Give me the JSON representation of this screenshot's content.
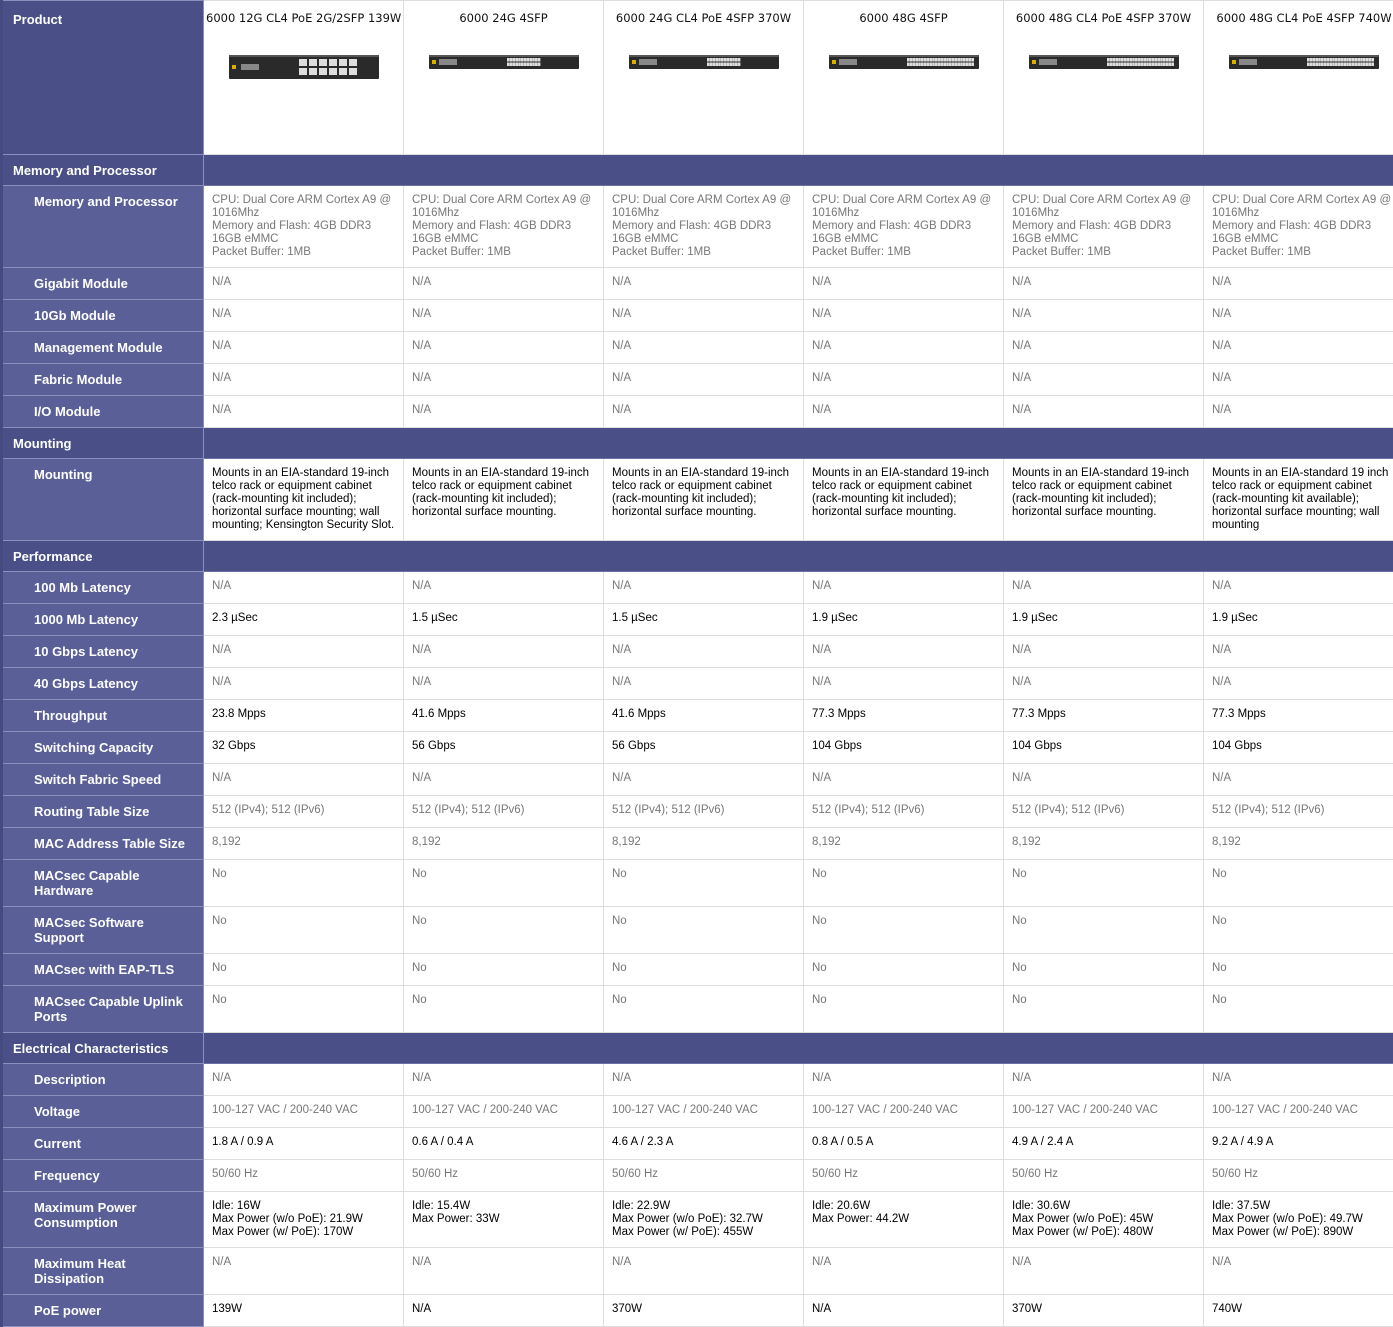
{
  "table": {
    "header": {
      "label": "Product",
      "columns": [
        "6000 12G CL4 PoE 2G/2SFP 139W",
        "6000 24G 4SFP",
        "6000 24G CL4 PoE 4SFP 370W",
        "6000 48G 4SFP",
        "6000 48G CL4 PoE 4SFP 370W",
        "6000 48G CL4 PoE 4SFP 740W"
      ]
    },
    "sections": [
      {
        "title": "Memory and Processor",
        "rows": [
          {
            "label": "Memory and Processor",
            "color": "#777777",
            "cells": [
              [
                "CPU: Dual Core ARM Cortex A9 @ 1016Mhz",
                "Memory and Flash: 4GB DDR3 16GB eMMC",
                "Packet Buffer: 1MB"
              ],
              [
                "CPU: Dual Core ARM Cortex A9 @ 1016Mhz",
                "Memory and Flash: 4GB DDR3 16GB eMMC",
                "Packet Buffer: 1MB"
              ],
              [
                "CPU: Dual Core ARM Cortex A9 @ 1016Mhz",
                "Memory and Flash: 4GB DDR3 16GB eMMC",
                "Packet Buffer: 1MB"
              ],
              [
                "CPU: Dual Core ARM Cortex A9 @ 1016Mhz",
                "Memory and Flash: 4GB DDR3 16GB eMMC",
                "Packet Buffer: 1MB"
              ],
              [
                "CPU: Dual Core ARM Cortex A9 @ 1016Mhz",
                "Memory and Flash: 4GB DDR3 16GB eMMC",
                "Packet Buffer: 1MB"
              ],
              [
                "CPU: Dual Core ARM Cortex A9 @ 1016Mhz",
                "Memory and Flash: 4GB DDR3 16GB eMMC",
                "Packet Buffer: 1MB"
              ]
            ]
          },
          {
            "label": "Gigabit Module",
            "color": "#777777",
            "cells": [
              "N/A",
              "N/A",
              "N/A",
              "N/A",
              "N/A",
              "N/A"
            ]
          },
          {
            "label": "10Gb Module",
            "color": "#777777",
            "cells": [
              "N/A",
              "N/A",
              "N/A",
              "N/A",
              "N/A",
              "N/A"
            ]
          },
          {
            "label": "Management Module",
            "color": "#777777",
            "cells": [
              "N/A",
              "N/A",
              "N/A",
              "N/A",
              "N/A",
              "N/A"
            ]
          },
          {
            "label": "Fabric Module",
            "color": "#777777",
            "cells": [
              "N/A",
              "N/A",
              "N/A",
              "N/A",
              "N/A",
              "N/A"
            ]
          },
          {
            "label": "I/O Module",
            "color": "#777777",
            "cells": [
              "N/A",
              "N/A",
              "N/A",
              "N/A",
              "N/A",
              "N/A"
            ]
          }
        ]
      },
      {
        "title": "Mounting",
        "rows": [
          {
            "label": "Mounting",
            "color": "#000000",
            "cells": [
              "Mounts in an EIA-standard 19-inch telco rack or equipment cabinet (rack-mounting kit included); horizontal surface mounting; wall mounting; Kensington Security Slot.",
              "Mounts in an EIA-standard 19-inch telco rack or equipment cabinet (rack-mounting kit included); horizontal surface mounting.",
              "Mounts in an EIA-standard 19-inch telco rack or equipment cabinet (rack-mounting kit included); horizontal surface mounting.",
              "Mounts in an EIA-standard 19-inch telco rack or equipment cabinet (rack-mounting kit included); horizontal surface mounting.",
              "Mounts in an EIA-standard 19-inch telco rack or equipment cabinet (rack-mounting kit included); horizontal surface mounting.",
              "Mounts in an EIA-standard 19 inch telco rack or equipment cabinet (rack-mounting kit available); horizontal surface mounting; wall mounting"
            ]
          }
        ]
      },
      {
        "title": "Performance",
        "rows": [
          {
            "label": "100 Mb Latency",
            "color": "#777777",
            "cells": [
              "N/A",
              "N/A",
              "N/A",
              "N/A",
              "N/A",
              "N/A"
            ]
          },
          {
            "label": "1000 Mb Latency",
            "color": "#000000",
            "cells": [
              "2.3 µSec",
              "1.5 µSec",
              "1.5 µSec",
              "1.9 µSec",
              "1.9 µSec",
              "1.9 µSec"
            ]
          },
          {
            "label": "10 Gbps Latency",
            "color": "#777777",
            "cells": [
              "N/A",
              "N/A",
              "N/A",
              "N/A",
              "N/A",
              "N/A"
            ]
          },
          {
            "label": "40 Gbps Latency",
            "color": "#777777",
            "cells": [
              "N/A",
              "N/A",
              "N/A",
              "N/A",
              "N/A",
              "N/A"
            ]
          },
          {
            "label": "Throughput",
            "color": "#000000",
            "cells": [
              "23.8 Mpps",
              "41.6 Mpps",
              "41.6 Mpps",
              "77.3 Mpps",
              "77.3 Mpps",
              "77.3 Mpps"
            ]
          },
          {
            "label": "Switching Capacity",
            "color": "#000000",
            "cells": [
              "32 Gbps",
              "56 Gbps",
              "56 Gbps",
              "104 Gbps",
              "104 Gbps",
              "104 Gbps"
            ]
          },
          {
            "label": "Switch Fabric Speed",
            "color": "#777777",
            "cells": [
              "N/A",
              "N/A",
              "N/A",
              "N/A",
              "N/A",
              "N/A"
            ]
          },
          {
            "label": "Routing Table Size",
            "color": "#777777",
            "cells": [
              "512 (IPv4); 512 (IPv6)",
              "512 (IPv4); 512 (IPv6)",
              "512 (IPv4); 512 (IPv6)",
              "512 (IPv4); 512 (IPv6)",
              "512 (IPv4); 512 (IPv6)",
              "512 (IPv4); 512 (IPv6)"
            ]
          },
          {
            "label": "MAC Address Table Size",
            "color": "#777777",
            "cells": [
              "8,192",
              "8,192",
              "8,192",
              "8,192",
              "8,192",
              "8,192"
            ]
          },
          {
            "label": "MACsec Capable Hardware",
            "color": "#777777",
            "cells": [
              "No",
              "No",
              "No",
              "No",
              "No",
              "No"
            ]
          },
          {
            "label": "MACsec Software Support",
            "color": "#777777",
            "cells": [
              "No",
              "No",
              "No",
              "No",
              "No",
              "No"
            ]
          },
          {
            "label": "MACsec with EAP-TLS",
            "color": "#777777",
            "cells": [
              "No",
              "No",
              "No",
              "No",
              "No",
              "No"
            ]
          },
          {
            "label": "MACsec Capable Uplink Ports",
            "color": "#777777",
            "cells": [
              "No",
              "No",
              "No",
              "No",
              "No",
              "No"
            ]
          }
        ]
      },
      {
        "title": "Electrical Characteristics",
        "rows": [
          {
            "label": "Description",
            "color": "#777777",
            "cells": [
              "N/A",
              "N/A",
              "N/A",
              "N/A",
              "N/A",
              "N/A"
            ]
          },
          {
            "label": "Voltage",
            "color": "#777777",
            "cells": [
              "100-127 VAC / 200-240 VAC",
              "100-127 VAC / 200-240 VAC",
              "100-127 VAC / 200-240 VAC",
              "100-127 VAC / 200-240 VAC",
              "100-127 VAC / 200-240 VAC",
              "100-127 VAC / 200-240 VAC"
            ]
          },
          {
            "label": "Current",
            "color": "#000000",
            "cells": [
              "1.8 A / 0.9 A",
              "0.6 A / 0.4 A",
              "4.6 A / 2.3 A",
              "0.8 A / 0.5 A",
              "4.9 A / 2.4 A",
              "9.2 A / 4.9 A"
            ]
          },
          {
            "label": "Frequency",
            "color": "#777777",
            "cells": [
              "50/60 Hz",
              "50/60 Hz",
              "50/60 Hz",
              "50/60 Hz",
              "50/60 Hz",
              "50/60 Hz"
            ]
          },
          {
            "label": "Maximum Power Consumption",
            "color": "#000000",
            "cells": [
              [
                "Idle: 16W",
                "Max Power (w/o PoE): 21.9W",
                "Max Power (w/ PoE): 170W"
              ],
              [
                "Idle: 15.4W",
                "Max Power: 33W"
              ],
              [
                "Idle: 22.9W",
                "Max Power (w/o PoE): 32.7W",
                "Max Power (w/ PoE): 455W"
              ],
              [
                "Idle: 20.6W",
                "Max Power: 44.2W"
              ],
              [
                "Idle: 30.6W",
                "Max Power (w/o PoE): 45W",
                "Max Power (w/ PoE): 480W"
              ],
              [
                "Idle: 37.5W",
                "Max Power (w/o PoE): 49.7W",
                "Max Power (w/ PoE): 890W"
              ]
            ]
          },
          {
            "label": "Maximum Heat Dissipation",
            "color": "#777777",
            "cells": [
              "N/A",
              "N/A",
              "N/A",
              "N/A",
              "N/A",
              "N/A"
            ]
          },
          {
            "label": "PoE power",
            "color": "#000000",
            "cells": [
              "139W",
              "N/A",
              "370W",
              "N/A",
              "370W",
              "740W"
            ]
          }
        ]
      }
    ]
  }
}
